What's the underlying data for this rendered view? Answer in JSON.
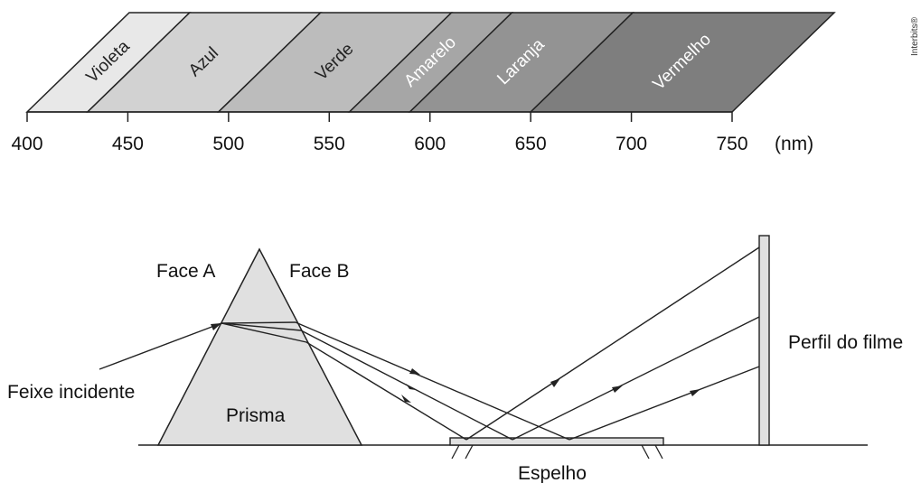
{
  "spectrum": {
    "bands": [
      {
        "label": "Violeta",
        "from": 400,
        "to": 430,
        "fill": "#e8e8e8",
        "text": "#222222"
      },
      {
        "label": "Azul",
        "from": 430,
        "to": 495,
        "fill": "#d2d2d2",
        "text": "#222222"
      },
      {
        "label": "Verde",
        "from": 495,
        "to": 560,
        "fill": "#bcbcbc",
        "text": "#222222"
      },
      {
        "label": "Amarelo",
        "from": 560,
        "to": 590,
        "fill": "#a6a6a6",
        "text": "#ffffff"
      },
      {
        "label": "Laranja",
        "from": 590,
        "to": 650,
        "fill": "#939393",
        "text": "#ffffff"
      },
      {
        "label": "Vermelho",
        "from": 650,
        "to": 750,
        "fill": "#7e7e7e",
        "text": "#ffffff"
      }
    ],
    "ticks": [
      "400",
      "450",
      "500",
      "550",
      "600",
      "650",
      "700",
      "750"
    ],
    "unit": "(nm)"
  },
  "diagram": {
    "face_a": "Face A",
    "face_b": "Face B",
    "prism": "Prisma",
    "incident": "Feixe incidente",
    "film": "Perfil do filme",
    "mirror": "Espelho"
  },
  "credit": "Interbits®",
  "colors": {
    "prism_fill": "#e0e0e0",
    "mirror_fill": "#e0e0e0",
    "film_fill": "#e0e0e0",
    "stroke": "#222222"
  }
}
